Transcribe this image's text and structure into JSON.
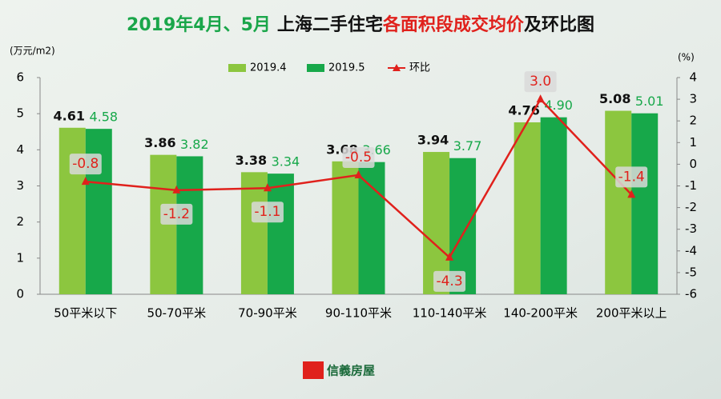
{
  "chart_data": {
    "type": "bar",
    "title_parts": [
      {
        "text": "2019年4月、5月",
        "color": "#1aa64a"
      },
      {
        "text": "上海二手住宅",
        "color": "#111111"
      },
      {
        "text": "各面积段成交均价",
        "color": "#e0211c"
      },
      {
        "text": "及环比图",
        "color": "#111111"
      }
    ],
    "y_label": "(万元/m2)",
    "y2_label": "(%)",
    "categories": [
      "50平米以下",
      "50-70平米",
      "70-90平米",
      "90-110平米",
      "110-140平米",
      "140-200平米",
      "200平米以上"
    ],
    "series": [
      {
        "name": "2019.4",
        "color": "#8cc63f",
        "label_color": "#111111",
        "values": [
          4.61,
          3.86,
          3.38,
          3.68,
          3.94,
          4.76,
          5.08
        ]
      },
      {
        "name": "2019.5",
        "color": "#17a84a",
        "label_color": "#17a84a",
        "values": [
          4.58,
          3.82,
          3.34,
          3.66,
          3.77,
          4.9,
          5.01
        ],
        "value_labels": [
          "4.58",
          "3.82",
          "3.34",
          "3.66",
          "3.77",
          "4.90",
          "5.01"
        ]
      },
      {
        "name": "环比",
        "type": "line",
        "axis": "y2",
        "color": "#e0211c",
        "values": [
          -0.8,
          -1.2,
          -1.1,
          -0.5,
          -4.3,
          3.0,
          -1.4
        ],
        "value_labels": [
          "-0.8",
          "-1.2",
          "-1.1",
          "-0.5",
          "-4.3",
          "3.0",
          "-1.4"
        ]
      }
    ],
    "ylim": [
      0,
      6
    ],
    "yticks": [
      0,
      1,
      2,
      3,
      4,
      5,
      6
    ],
    "y2lim": [
      -6,
      4
    ],
    "y2ticks": [
      -6,
      -5,
      -4,
      -3,
      -2,
      -1,
      0,
      1,
      2,
      3,
      4
    ],
    "logo_text": "信義房屋"
  }
}
